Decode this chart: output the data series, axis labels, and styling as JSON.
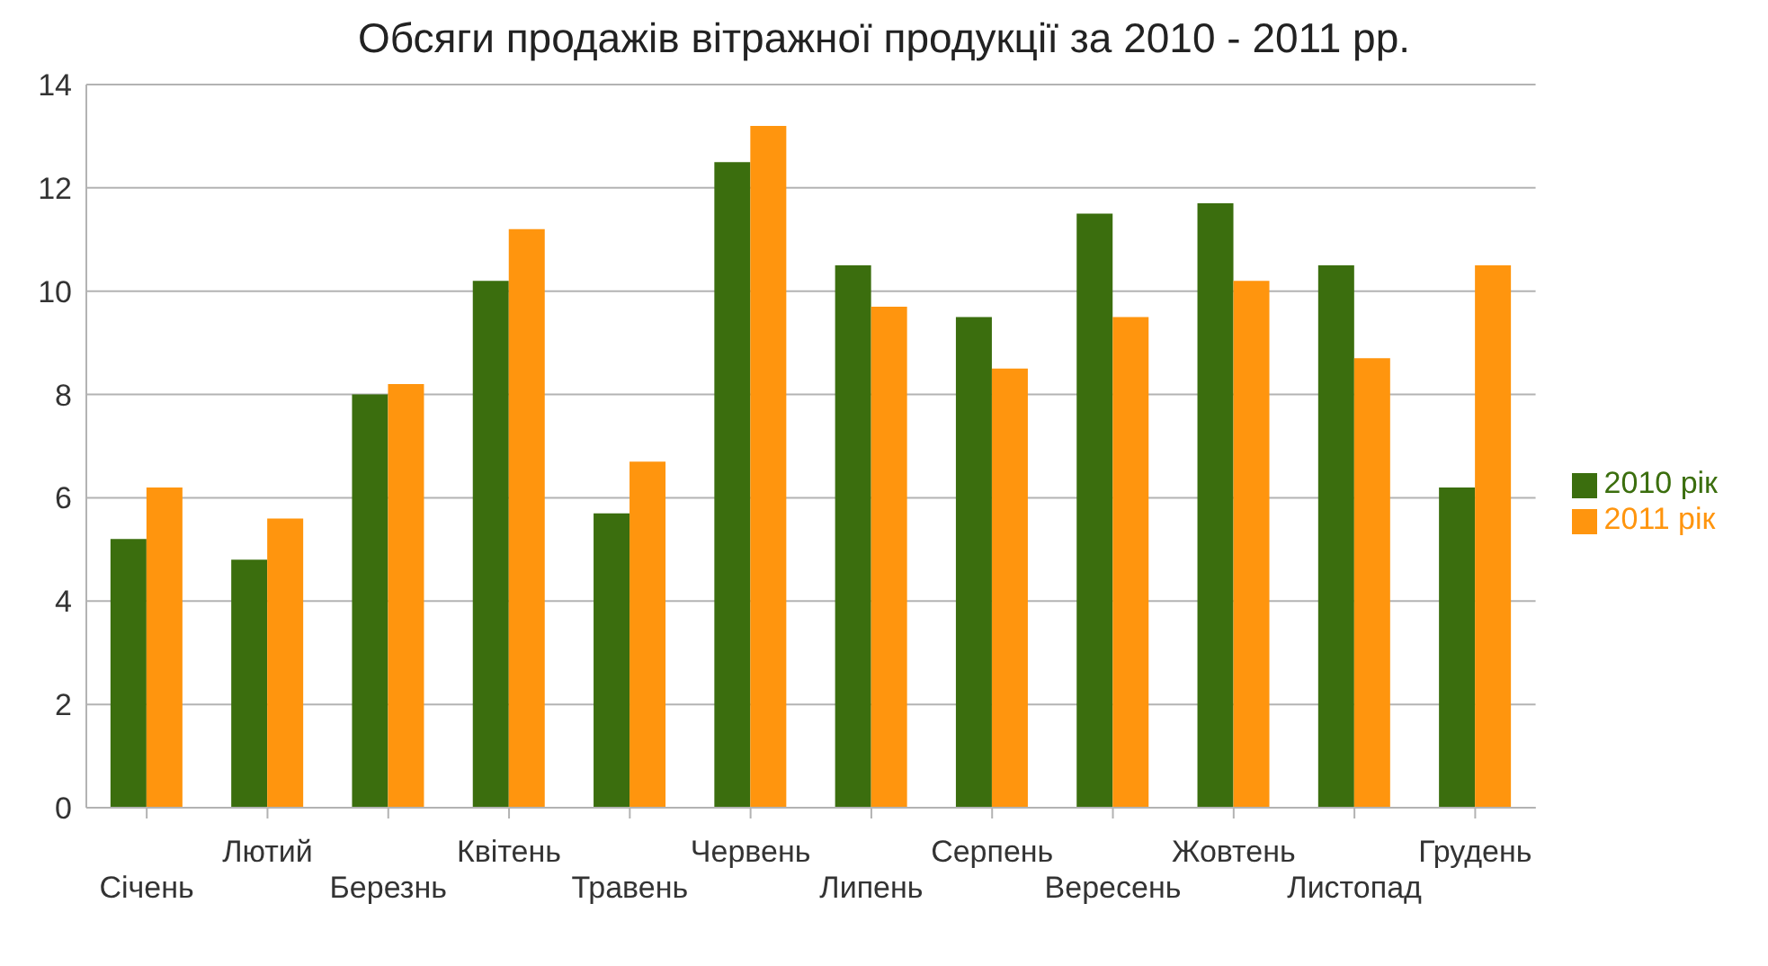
{
  "chart_data": {
    "type": "bar",
    "title": "Обсяги продажів вітражної продукції за 2010 - 2011 рр.",
    "categories": [
      "Січень",
      "Лютий",
      "Березнь",
      "Квітень",
      "Травень",
      "Червень",
      "Липень",
      "Серпень",
      "Вересень",
      "Жовтень",
      "Листопад",
      "Грудень"
    ],
    "series": [
      {
        "name": "2010 рік",
        "color": "#3b6e0e",
        "values": [
          5.2,
          4.8,
          8.0,
          10.2,
          5.7,
          12.5,
          10.5,
          9.5,
          11.5,
          11.7,
          10.5,
          6.2
        ]
      },
      {
        "name": "2011 рік",
        "color": "#ff950e",
        "values": [
          6.2,
          5.6,
          8.2,
          11.2,
          6.7,
          13.2,
          9.7,
          8.5,
          9.5,
          10.2,
          8.7,
          10.5
        ]
      }
    ],
    "ylim": [
      0,
      14
    ],
    "yticks": [
      0,
      2,
      4,
      6,
      8,
      10,
      12,
      14
    ],
    "grid": "y",
    "legend": "right"
  }
}
